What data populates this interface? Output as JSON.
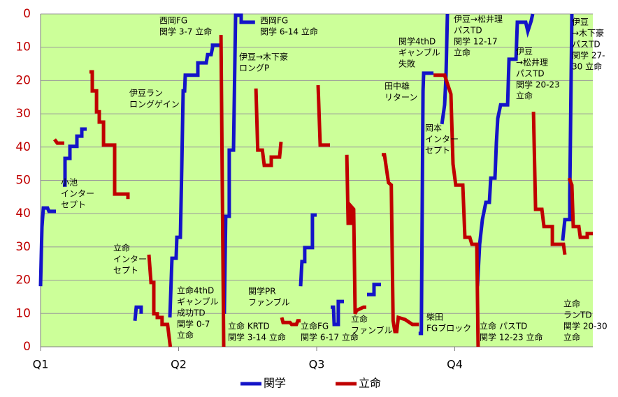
{
  "chart_data": {
    "type": "line",
    "xlim": [
      0,
      60
    ],
    "xticks": [
      {
        "value": 0,
        "label": "Q1"
      },
      {
        "value": 15,
        "label": "Q2"
      },
      {
        "value": 30,
        "label": "Q3"
      },
      {
        "value": 45,
        "label": "Q4"
      }
    ],
    "ylim": [
      100,
      0
    ],
    "yticks": [
      0,
      10,
      20,
      30,
      40,
      50,
      {
        "value": 60,
        "label": "40"
      },
      {
        "value": 70,
        "label": "30"
      },
      {
        "value": 80,
        "label": "20"
      },
      {
        "value": 90,
        "label": "10"
      },
      {
        "value": 100,
        "label": "0"
      }
    ],
    "grid": true,
    "legend": "bottom",
    "background": "#ccff99",
    "series": [
      {
        "name": "関学",
        "color": "#1414c8",
        "x": [
          0,
          0.15,
          0.3,
          0.76,
          0.91,
          1.67,
          null,
          2.43,
          2.66,
          2.66,
          3.19,
          3.19,
          3.95,
          3.95,
          4.48,
          4.48,
          5.01,
          null,
          10.25,
          10.4,
          10.93,
          10.93,
          null,
          14.05,
          14.28,
          14.73,
          14.81,
          15.19,
          15.34,
          15.49,
          15.65,
          15.72,
          17.09,
          17.09,
          18.0,
          18.15,
          18.53,
          18.68,
          18.68,
          19.75,
          null,
          19.97,
          20.12,
          20.5,
          20.5,
          20.96,
          21.19,
          21.8,
          21.8,
          23.3,
          null,
          28.25,
          28.4,
          28.7,
          28.7,
          29.54,
          29.54,
          30.0,
          null,
          31.52,
          31.82,
          31.9,
          32.35,
          32.35,
          32.96,
          null,
          35.47,
          36.23,
          36.23,
          36.99,
          null,
          41.07,
          41.37,
          41.55,
          41.62,
          42.69,
          null,
          43.6,
          43.9,
          44.05,
          44.2,
          null,
          47.47,
          47.7,
          48.0,
          48.38,
          48.76,
          48.91,
          49.37,
          49.52,
          49.67,
          49.98,
          50.74,
          50.89,
          51.65,
          51.8,
          52.71,
          52.94,
          53.3,
          53.47,
          null,
          56.73,
          56.96,
          57.49,
          57.49,
          57.72
        ],
        "values": [
          81.8,
          64.0,
          58.3,
          58.3,
          59.3,
          59.3,
          null,
          51.4,
          51.4,
          43.4,
          43.4,
          39.8,
          39.8,
          36.7,
          36.7,
          34.6,
          34.6,
          null,
          92.2,
          88.1,
          88.1,
          90.1,
          null,
          91.2,
          73.4,
          73.4,
          67.1,
          67.1,
          46.1,
          23.1,
          23.1,
          18.4,
          18.4,
          14.7,
          14.7,
          12.2,
          12.2,
          10.1,
          9.4,
          9.4,
          null,
          90.1,
          60.8,
          60.8,
          40.9,
          40.9,
          0.4,
          0.4,
          2.5,
          2.5,
          null,
          81.8,
          74.4,
          74.4,
          70.2,
          70.2,
          60.4,
          60.4,
          null,
          88.1,
          88.1,
          93.3,
          93.3,
          86.4,
          86.4,
          null,
          84.3,
          84.3,
          81.3,
          81.3,
          null,
          96.0,
          96.0,
          23.1,
          17.8,
          17.8,
          null,
          33.1,
          27.3,
          18.4,
          0,
          null,
          81.8,
          69.2,
          61.8,
          56.6,
          56.6,
          49.3,
          49.3,
          38.8,
          31.4,
          27.3,
          27.3,
          13.6,
          13.6,
          2.5,
          2.5,
          5.2,
          2.1,
          0,
          null,
          68.1,
          61.8,
          61.8,
          54.5,
          0
        ]
      },
      {
        "name": "立命",
        "color": "#c00000",
        "x": [
          1.52,
          1.82,
          2.58,
          null,
          5.31,
          5.62,
          5.62,
          6.08,
          6.08,
          6.38,
          6.38,
          6.84,
          6.84,
          8.05,
          8.05,
          9.49,
          9.49,
          null,
          11.77,
          12.0,
          12.3,
          12.3,
          12.68,
          12.68,
          13.2,
          13.2,
          13.8,
          14.1,
          null,
          19.6,
          19.9,
          null,
          23.4,
          23.6,
          24.1,
          24.3,
          25.06,
          25.06,
          25.97,
          26.13,
          null,
          26.2,
          26.35,
          27.11,
          27.27,
          27.8,
          27.95,
          28.25,
          null,
          30.15,
          30.38,
          31.44,
          null,
          33.27,
          33.42,
          33.7,
          33.7,
          34.02,
          34.18,
          34.33,
          35.09,
          35.39,
          null,
          37.06,
          37.36,
          37.8,
          38.1,
          38.3,
          38.5,
          38.7,
          38.86,
          39.6,
          40.4,
          41.1,
          null,
          42.69,
          43.9,
          44.58,
          44.81,
          45.11,
          45.87,
          46.1,
          46.63,
          46.86,
          47.39,
          47.54,
          null,
          53.55,
          53.78,
          54.46,
          54.69,
          55.6,
          55.6,
          56.81,
          56.96,
          null,
          57.42,
          57.72,
          57.87,
          58.48,
          58.63,
          59.39,
          59.39,
          60
        ],
        "values": [
          37.7,
          38.8,
          38.8,
          null,
          17.4,
          17.4,
          23.1,
          23.1,
          29.4,
          29.4,
          32.5,
          32.5,
          39.4,
          39.4,
          54.1,
          54.1,
          55.6,
          null,
          72.3,
          80.7,
          80.7,
          90.1,
          90.1,
          91.2,
          91.2,
          93.3,
          93.3,
          100,
          null,
          6.3,
          100,
          null,
          22.4,
          40.9,
          40.9,
          45.5,
          45.5,
          43.0,
          43.0,
          38.4,
          null,
          91.2,
          92.7,
          92.7,
          93.3,
          93.3,
          92.2,
          92.2,
          null,
          21.4,
          39.4,
          39.4,
          null,
          42.3,
          62.9,
          62.9,
          57.7,
          58.7,
          90.1,
          89.1,
          88.1,
          88.1,
          null,
          42.3,
          42.3,
          50.7,
          51.4,
          92.2,
          95.4,
          95.4,
          91.2,
          91.8,
          93.3,
          93.3,
          null,
          18.4,
          18.4,
          24.1,
          45.1,
          51.4,
          51.4,
          67.1,
          67.1,
          69.2,
          69.2,
          100,
          null,
          29.4,
          58.7,
          58.7,
          63.9,
          63.9,
          69.2,
          69.2,
          72.3,
          null,
          49.3,
          51.4,
          63.9,
          63.9,
          67.1,
          67.1,
          66.0,
          66.0
        ]
      }
    ],
    "annotations": [
      [
        "西岡FG",
        "関学 3-7 立命"
      ],
      [
        "西岡FG",
        "関学 6-14 立命"
      ],
      [
        "伊豆→木下豪",
        "ロングP"
      ],
      [
        "伊豆ラン",
        "ロングゲイン"
      ],
      [
        "小池",
        "インター",
        "セプト"
      ],
      [
        "立命",
        "インター",
        "セプト"
      ],
      [
        "立命4thD",
        "ギャンブル",
        "成功TD",
        "関学 0-7",
        "立命"
      ],
      [
        "立命 KRTD",
        "関学 3-14 立命"
      ],
      [
        "関学PR",
        "ファンブル"
      ],
      [
        "立命FG",
        "関学 6-17 立命"
      ],
      [
        "立命",
        "ファンブル"
      ],
      [
        "関学4thD",
        "ギャンブル",
        "失敗"
      ],
      [
        "田中雄",
        "リターン"
      ],
      [
        "柴田",
        "FGブロック"
      ],
      [
        "岡本",
        "インター",
        "セプト"
      ],
      [
        "伊豆→松井理",
        "パスTD",
        "関学 12-17",
        "立命"
      ],
      [
        "伊豆",
        "→松井理",
        "パスTD",
        "関学 20-23",
        "立命"
      ],
      [
        "伊豆",
        "→木下豪",
        "パスTD",
        "関学 27-",
        "30 立命"
      ],
      [
        "立命 パスTD",
        "関学 12-23 立命"
      ],
      [
        "立命",
        "ランTD",
        "関学 20-30",
        "立命"
      ]
    ]
  }
}
